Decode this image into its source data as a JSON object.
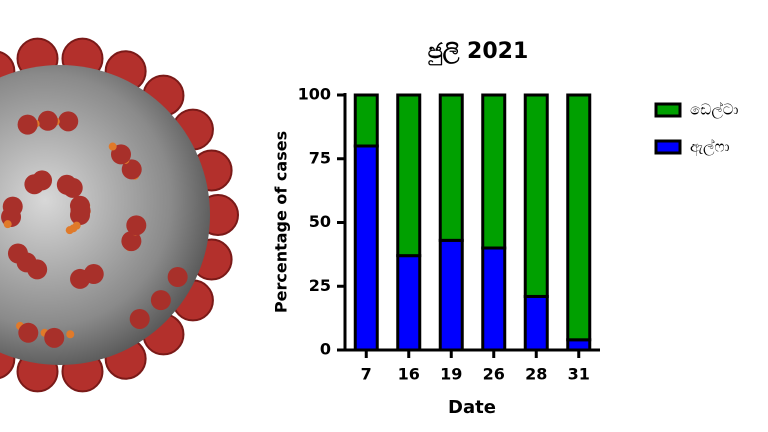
{
  "chart_data": {
    "type": "stacked_bar",
    "title": "ජුලි 2021",
    "x_label": "Date",
    "y_label": "Percentage of cases",
    "categories": [
      "7",
      "16",
      "19",
      "26",
      "28",
      "31"
    ],
    "series": [
      {
        "name": "ඩෙල්ටා",
        "color": "#00a000",
        "values": [
          20,
          63,
          57,
          60,
          79,
          96
        ]
      },
      {
        "name": "ඇල්ෆා",
        "color": "#0000ff",
        "values": [
          80,
          37,
          43,
          40,
          21,
          4
        ]
      }
    ],
    "ylim": [
      0,
      100
    ],
    "yticks": [
      0,
      25,
      50,
      75,
      100
    ],
    "legend": "right"
  }
}
